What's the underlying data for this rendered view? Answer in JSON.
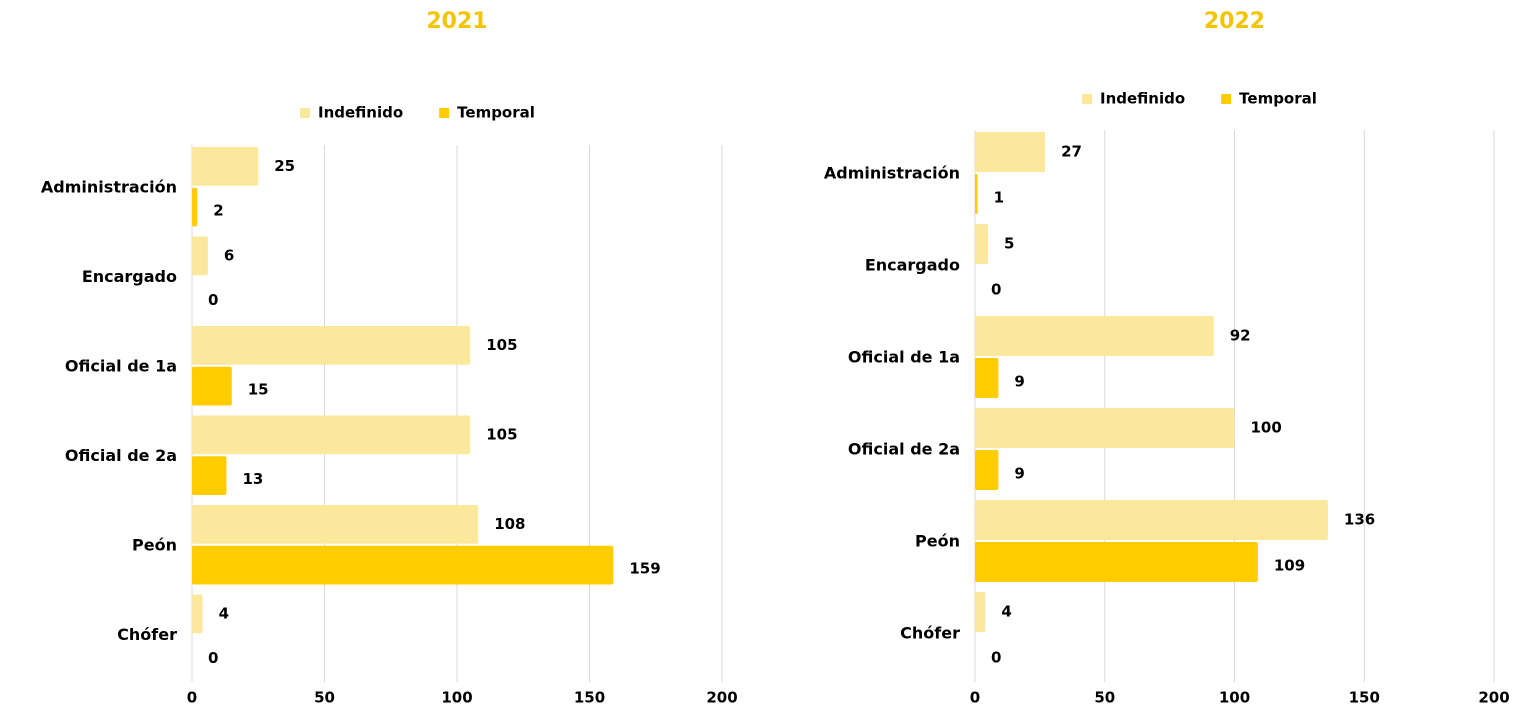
{
  "chart_data": [
    {
      "type": "bar",
      "orientation": "horizontal",
      "title": "2021",
      "categories": [
        "Administración",
        "Encargado",
        "Oficial de 1a",
        "Oficial de 2a",
        "Peón",
        "Chófer"
      ],
      "series": [
        {
          "name": "Indefinido",
          "color": "#fbe89d",
          "values": [
            25,
            6,
            105,
            105,
            108,
            4
          ]
        },
        {
          "name": "Temporal",
          "color": "#ffcc00",
          "values": [
            2,
            0,
            15,
            13,
            159,
            0
          ]
        }
      ],
      "xlim": [
        0,
        200
      ],
      "xticks": [
        0,
        50,
        100,
        150,
        200
      ],
      "grid": true,
      "legend": "top"
    },
    {
      "type": "bar",
      "orientation": "horizontal",
      "title": "2022",
      "categories": [
        "Administración",
        "Encargado",
        "Oficial de 1a",
        "Oficial de 2a",
        "Peón",
        "Chófer"
      ],
      "series": [
        {
          "name": "Indefinido",
          "color": "#fbe89d",
          "values": [
            27,
            5,
            92,
            100,
            136,
            4
          ]
        },
        {
          "name": "Temporal",
          "color": "#ffcc00",
          "values": [
            1,
            0,
            9,
            9,
            109,
            0
          ]
        }
      ],
      "xlim": [
        0,
        200
      ],
      "xticks": [
        0,
        50,
        100,
        150,
        200
      ],
      "grid": true,
      "legend": "top"
    }
  ]
}
